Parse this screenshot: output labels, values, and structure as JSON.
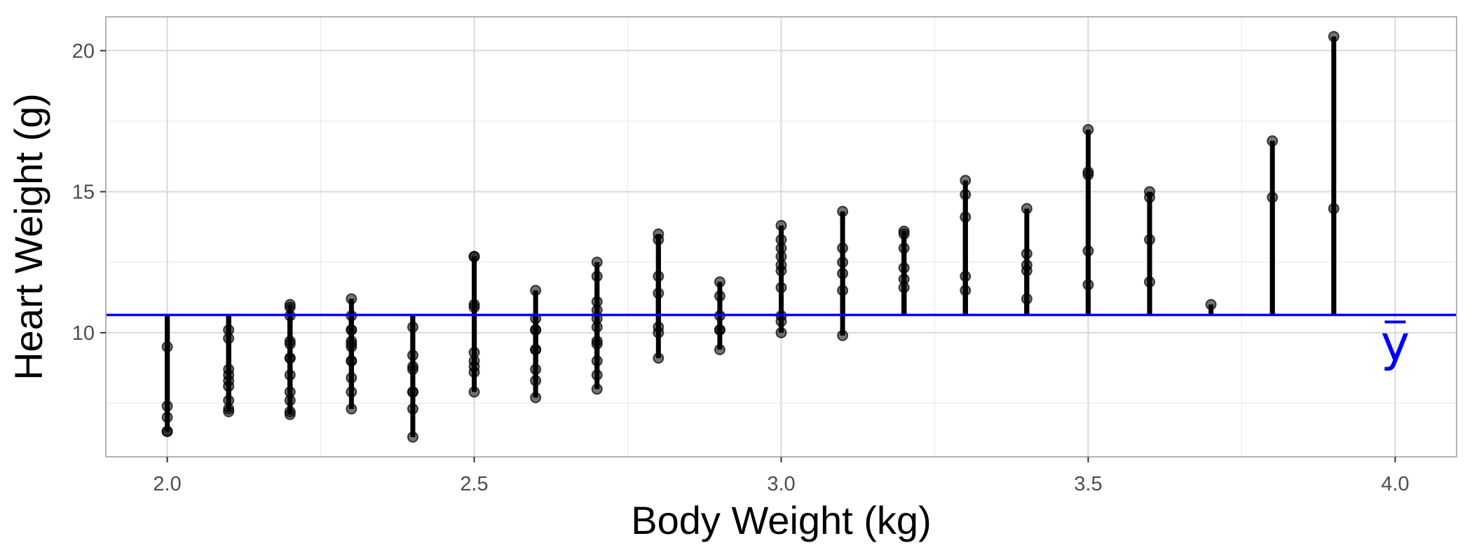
{
  "chart_data": {
    "type": "scatter",
    "title": "",
    "xlabel": "Body Weight (kg)",
    "ylabel": "Heart Weight (g)",
    "xlim": [
      1.9,
      4.1
    ],
    "ylim": [
      5.6,
      21.2
    ],
    "x_ticks": [
      2.0,
      2.5,
      3.0,
      3.5,
      4.0
    ],
    "x_tick_labels": [
      "2.0",
      "2.5",
      "3.0",
      "3.5",
      "4.0"
    ],
    "y_ticks": [
      10,
      15,
      20
    ],
    "y_tick_labels": [
      "10",
      "15",
      "20"
    ],
    "grid": true,
    "legend": "none",
    "mean_line": {
      "value": 10.63,
      "label": "y",
      "color": "#0000ff"
    },
    "colors": {
      "points": "#000000",
      "segments": "#000000",
      "mean": "#0000ff"
    },
    "points": [
      {
        "x": 2.0,
        "y": 6.5
      },
      {
        "x": 2.0,
        "y": 6.5
      },
      {
        "x": 2.0,
        "y": 7.0
      },
      {
        "x": 2.0,
        "y": 7.4
      },
      {
        "x": 2.0,
        "y": 9.5
      },
      {
        "x": 2.1,
        "y": 7.2
      },
      {
        "x": 2.1,
        "y": 7.3
      },
      {
        "x": 2.1,
        "y": 7.6
      },
      {
        "x": 2.1,
        "y": 8.1
      },
      {
        "x": 2.1,
        "y": 8.3
      },
      {
        "x": 2.1,
        "y": 8.5
      },
      {
        "x": 2.1,
        "y": 8.7
      },
      {
        "x": 2.1,
        "y": 9.8
      },
      {
        "x": 2.1,
        "y": 10.1
      },
      {
        "x": 2.2,
        "y": 7.1
      },
      {
        "x": 2.2,
        "y": 7.2
      },
      {
        "x": 2.2,
        "y": 7.6
      },
      {
        "x": 2.2,
        "y": 7.9
      },
      {
        "x": 2.2,
        "y": 8.5
      },
      {
        "x": 2.2,
        "y": 9.1
      },
      {
        "x": 2.2,
        "y": 9.1
      },
      {
        "x": 2.2,
        "y": 9.6
      },
      {
        "x": 2.2,
        "y": 9.7
      },
      {
        "x": 2.2,
        "y": 10.6
      },
      {
        "x": 2.2,
        "y": 10.9
      },
      {
        "x": 2.2,
        "y": 11.0
      },
      {
        "x": 2.3,
        "y": 7.3
      },
      {
        "x": 2.3,
        "y": 7.9
      },
      {
        "x": 2.3,
        "y": 8.4
      },
      {
        "x": 2.3,
        "y": 9.0
      },
      {
        "x": 2.3,
        "y": 9.0
      },
      {
        "x": 2.3,
        "y": 9.5
      },
      {
        "x": 2.3,
        "y": 9.6
      },
      {
        "x": 2.3,
        "y": 9.7
      },
      {
        "x": 2.3,
        "y": 10.1
      },
      {
        "x": 2.3,
        "y": 10.1
      },
      {
        "x": 2.3,
        "y": 10.6
      },
      {
        "x": 2.3,
        "y": 11.2
      },
      {
        "x": 2.4,
        "y": 6.3
      },
      {
        "x": 2.4,
        "y": 7.3
      },
      {
        "x": 2.4,
        "y": 7.9
      },
      {
        "x": 2.4,
        "y": 7.9
      },
      {
        "x": 2.4,
        "y": 8.7
      },
      {
        "x": 2.4,
        "y": 8.8
      },
      {
        "x": 2.4,
        "y": 9.2
      },
      {
        "x": 2.4,
        "y": 10.2
      },
      {
        "x": 2.5,
        "y": 7.9
      },
      {
        "x": 2.5,
        "y": 8.6
      },
      {
        "x": 2.5,
        "y": 8.8
      },
      {
        "x": 2.5,
        "y": 9.0
      },
      {
        "x": 2.5,
        "y": 9.3
      },
      {
        "x": 2.5,
        "y": 10.9
      },
      {
        "x": 2.5,
        "y": 11.0
      },
      {
        "x": 2.5,
        "y": 12.7
      },
      {
        "x": 2.5,
        "y": 12.7
      },
      {
        "x": 2.6,
        "y": 7.7
      },
      {
        "x": 2.6,
        "y": 8.3
      },
      {
        "x": 2.6,
        "y": 8.7
      },
      {
        "x": 2.6,
        "y": 9.4
      },
      {
        "x": 2.6,
        "y": 9.4
      },
      {
        "x": 2.6,
        "y": 10.1
      },
      {
        "x": 2.6,
        "y": 10.1
      },
      {
        "x": 2.6,
        "y": 10.5
      },
      {
        "x": 2.6,
        "y": 11.5
      },
      {
        "x": 2.7,
        "y": 8.0
      },
      {
        "x": 2.7,
        "y": 8.5
      },
      {
        "x": 2.7,
        "y": 9.0
      },
      {
        "x": 2.7,
        "y": 9.6
      },
      {
        "x": 2.7,
        "y": 9.7
      },
      {
        "x": 2.7,
        "y": 10.2
      },
      {
        "x": 2.7,
        "y": 10.5
      },
      {
        "x": 2.7,
        "y": 10.8
      },
      {
        "x": 2.7,
        "y": 11.1
      },
      {
        "x": 2.7,
        "y": 12.0
      },
      {
        "x": 2.7,
        "y": 12.5
      },
      {
        "x": 2.8,
        "y": 9.1
      },
      {
        "x": 2.8,
        "y": 10.0
      },
      {
        "x": 2.8,
        "y": 10.2
      },
      {
        "x": 2.8,
        "y": 11.4
      },
      {
        "x": 2.8,
        "y": 12.0
      },
      {
        "x": 2.8,
        "y": 13.3
      },
      {
        "x": 2.8,
        "y": 13.5
      },
      {
        "x": 2.9,
        "y": 9.4
      },
      {
        "x": 2.9,
        "y": 10.1
      },
      {
        "x": 2.9,
        "y": 10.1
      },
      {
        "x": 2.9,
        "y": 10.6
      },
      {
        "x": 2.9,
        "y": 11.3
      },
      {
        "x": 2.9,
        "y": 11.8
      },
      {
        "x": 3.0,
        "y": 10.0
      },
      {
        "x": 3.0,
        "y": 10.4
      },
      {
        "x": 3.0,
        "y": 10.6
      },
      {
        "x": 3.0,
        "y": 11.6
      },
      {
        "x": 3.0,
        "y": 12.2
      },
      {
        "x": 3.0,
        "y": 12.4
      },
      {
        "x": 3.0,
        "y": 12.7
      },
      {
        "x": 3.0,
        "y": 13.0
      },
      {
        "x": 3.0,
        "y": 13.3
      },
      {
        "x": 3.0,
        "y": 13.8
      },
      {
        "x": 3.1,
        "y": 9.9
      },
      {
        "x": 3.1,
        "y": 11.5
      },
      {
        "x": 3.1,
        "y": 12.1
      },
      {
        "x": 3.1,
        "y": 12.5
      },
      {
        "x": 3.1,
        "y": 13.0
      },
      {
        "x": 3.1,
        "y": 14.3
      },
      {
        "x": 3.2,
        "y": 11.6
      },
      {
        "x": 3.2,
        "y": 11.9
      },
      {
        "x": 3.2,
        "y": 12.3
      },
      {
        "x": 3.2,
        "y": 13.0
      },
      {
        "x": 3.2,
        "y": 13.5
      },
      {
        "x": 3.2,
        "y": 13.6
      },
      {
        "x": 3.3,
        "y": 11.5
      },
      {
        "x": 3.3,
        "y": 12.0
      },
      {
        "x": 3.3,
        "y": 14.1
      },
      {
        "x": 3.3,
        "y": 14.9
      },
      {
        "x": 3.3,
        "y": 15.4
      },
      {
        "x": 3.4,
        "y": 11.2
      },
      {
        "x": 3.4,
        "y": 12.2
      },
      {
        "x": 3.4,
        "y": 12.4
      },
      {
        "x": 3.4,
        "y": 12.8
      },
      {
        "x": 3.4,
        "y": 14.4
      },
      {
        "x": 3.5,
        "y": 11.7
      },
      {
        "x": 3.5,
        "y": 12.9
      },
      {
        "x": 3.5,
        "y": 15.6
      },
      {
        "x": 3.5,
        "y": 15.7
      },
      {
        "x": 3.5,
        "y": 17.2
      },
      {
        "x": 3.6,
        "y": 11.8
      },
      {
        "x": 3.6,
        "y": 13.3
      },
      {
        "x": 3.6,
        "y": 14.8
      },
      {
        "x": 3.6,
        "y": 15.0
      },
      {
        "x": 3.7,
        "y": 11.0
      },
      {
        "x": 3.8,
        "y": 14.8
      },
      {
        "x": 3.8,
        "y": 16.8
      },
      {
        "x": 3.9,
        "y": 14.4
      },
      {
        "x": 3.9,
        "y": 20.5
      }
    ]
  }
}
